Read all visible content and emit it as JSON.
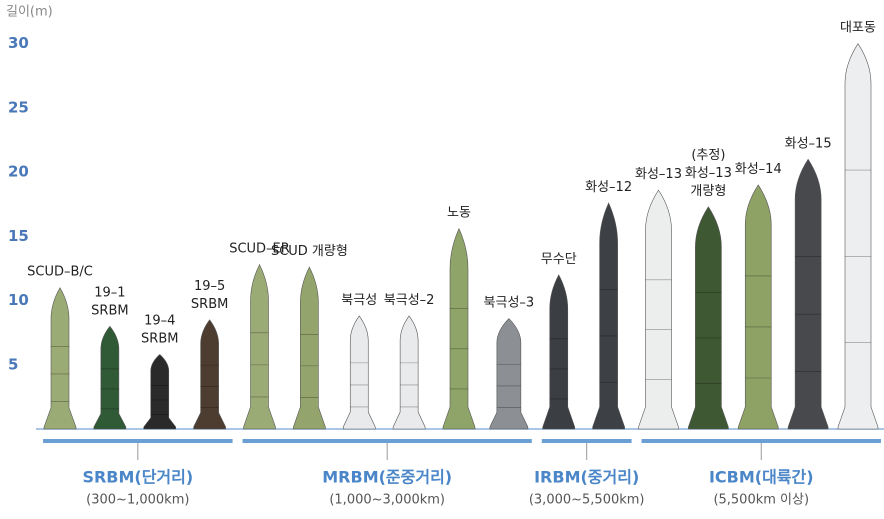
{
  "chart_data": {
    "type": "missile",
    "y_label": "길이(m)",
    "ylim": [
      0,
      32
    ],
    "yticks": [
      5,
      10,
      15,
      20,
      25,
      30
    ],
    "groups": [
      {
        "name": "SRBM(단거리)",
        "note": "(300~1,000km)",
        "categories": [
          "SCUD–B/C",
          "19–1\nSRBM",
          "19–4\nSRBM",
          "19–5\nSRBM"
        ],
        "values": [
          11,
          8,
          5.8,
          8.5
        ],
        "colors": [
          "#9bab76",
          "#2f5a35",
          "#2a2a2a",
          "#4d3d31"
        ]
      },
      {
        "name": "MRBM(준중거리)",
        "note": "(1,000~3,000km)",
        "categories": [
          "SCUD–ER",
          "SCUD 개량형",
          "북극성",
          "북극성–2",
          "노동",
          "북극성–3"
        ],
        "values": [
          12.8,
          12.6,
          8.8,
          8.8,
          15.6,
          8.6
        ],
        "colors": [
          "#9bab76",
          "#93a46c",
          "#e9eaec",
          "#e9eaec",
          "#8fa468",
          "#8c9094"
        ]
      },
      {
        "name": "IRBM(중거리)",
        "note": "(3,000~5,500km)",
        "categories": [
          "무수단",
          "화성–12"
        ],
        "values": [
          12,
          17.6
        ],
        "colors": [
          "#3b3e42",
          "#3d4145"
        ]
      },
      {
        "name": "ICBM(대륙간)",
        "note": "(5,500km 이상)",
        "categories": [
          "화성–13",
          "(추정)\n화성–13\n개량형",
          "화성–14",
          "화성–15",
          "대포동"
        ],
        "values": [
          18.6,
          17.3,
          19,
          21,
          30
        ],
        "colors": [
          "#eceded",
          "#3f5834",
          "#8ea266",
          "#47494d",
          "#eceef0"
        ]
      }
    ]
  }
}
